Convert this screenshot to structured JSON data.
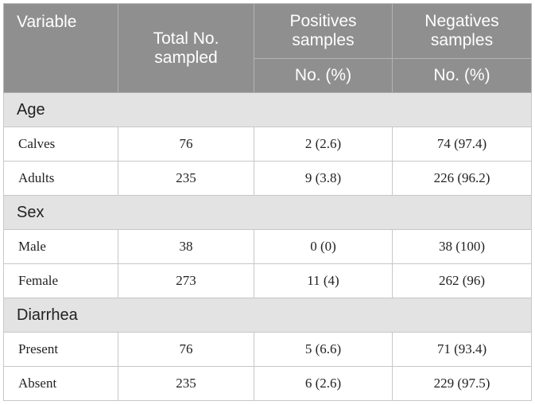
{
  "header": {
    "variable": "Variable",
    "total": "Total No. sampled",
    "positives": "Positives samples",
    "negatives": "Negatives samples",
    "pos_unit": "No. (%)",
    "neg_unit": "No. (%)"
  },
  "sections": [
    {
      "title": "Age",
      "rows": [
        {
          "label": "Calves",
          "total": "76",
          "pos": "2 (2.6)",
          "neg": "74 (97.4)"
        },
        {
          "label": "Adults",
          "total": "235",
          "pos": "9 (3.8)",
          "neg": "226 (96.2)"
        }
      ]
    },
    {
      "title": "Sex",
      "rows": [
        {
          "label": "Male",
          "total": "38",
          "pos": "0 (0)",
          "neg": "38 (100)"
        },
        {
          "label": "Female",
          "total": "273",
          "pos": "11 (4)",
          "neg": "262 (96)"
        }
      ]
    },
    {
      "title": "Diarrhea",
      "rows": [
        {
          "label": "Present",
          "total": "76",
          "pos": "5 (6.6)",
          "neg": "71 (93.4)"
        },
        {
          "label": "Absent",
          "total": "235",
          "pos": "6 (2.6)",
          "neg": "229 (97.5)"
        }
      ]
    }
  ]
}
